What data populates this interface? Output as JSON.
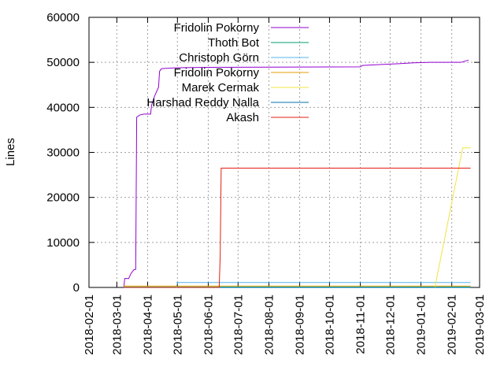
{
  "chart_data": {
    "type": "line",
    "title": "",
    "xlabel": "",
    "ylabel": "Lines",
    "ylim": [
      0,
      60000
    ],
    "xlim": [
      "2018-02-01",
      "2019-03-01"
    ],
    "yticks": [
      "0",
      "10000",
      "20000",
      "30000",
      "40000",
      "50000",
      "60000"
    ],
    "xticks": [
      "2018-02-01",
      "2018-03-01",
      "2018-04-01",
      "2018-05-01",
      "2018-06-01",
      "2018-07-01",
      "2018-08-01",
      "2018-09-01",
      "2018-10-01",
      "2018-11-01",
      "2018-12-01",
      "2019-01-01",
      "2019-02-01",
      "2019-03-01"
    ],
    "grid": true,
    "legend_position": "top-left",
    "series": [
      {
        "name": "Fridolin Pokorny",
        "color": "#9400d3",
        "points": [
          [
            "2018-03-08",
            0
          ],
          [
            "2018-03-09",
            2000
          ],
          [
            "2018-03-13",
            2000
          ],
          [
            "2018-03-15",
            3000
          ],
          [
            "2018-03-18",
            3900
          ],
          [
            "2018-03-20",
            4000
          ],
          [
            "2018-03-21",
            37800
          ],
          [
            "2018-03-24",
            38300
          ],
          [
            "2018-03-28",
            38500
          ],
          [
            "2018-04-04",
            38500
          ],
          [
            "2018-04-05",
            40500
          ],
          [
            "2018-04-08",
            42500
          ],
          [
            "2018-04-12",
            44500
          ],
          [
            "2018-04-13",
            48000
          ],
          [
            "2018-04-15",
            48600
          ],
          [
            "2018-05-01",
            48800
          ],
          [
            "2018-06-01",
            48900
          ],
          [
            "2018-11-01",
            49000
          ],
          [
            "2018-11-03",
            49300
          ],
          [
            "2018-11-20",
            49500
          ],
          [
            "2018-12-10",
            49700
          ],
          [
            "2018-12-25",
            49900
          ],
          [
            "2019-01-10",
            50000
          ],
          [
            "2019-02-10",
            50000
          ],
          [
            "2019-02-18",
            50500
          ]
        ]
      },
      {
        "name": "Thoth Bot",
        "color": "#009e73",
        "points": [
          [
            "2018-03-08",
            80
          ],
          [
            "2019-02-20",
            100
          ]
        ]
      },
      {
        "name": "Christoph Görn",
        "color": "#56b4e9",
        "points": [
          [
            "2018-03-08",
            0
          ],
          [
            "2018-04-30",
            0
          ],
          [
            "2018-05-01",
            1100
          ],
          [
            "2019-02-20",
            1100
          ]
        ]
      },
      {
        "name": "Fridolin Pokorny",
        "color": "#e69f00",
        "points": [
          [
            "2018-03-08",
            300
          ],
          [
            "2019-02-20",
            300
          ]
        ]
      },
      {
        "name": "Marek Cermak",
        "color": "#f0e442",
        "points": [
          [
            "2018-03-08",
            0
          ],
          [
            "2019-01-15",
            0
          ],
          [
            "2019-02-12",
            31000
          ],
          [
            "2019-02-20",
            31000
          ]
        ]
      },
      {
        "name": "Harshad Reddy Nalla",
        "color": "#0072b2",
        "points": [
          [
            "2018-03-08",
            0
          ],
          [
            "2019-02-20",
            0
          ]
        ]
      },
      {
        "name": "Akash",
        "color": "#e51e10",
        "points": [
          [
            "2018-03-08",
            0
          ],
          [
            "2018-06-12",
            0
          ],
          [
            "2018-06-13",
            6800
          ],
          [
            "2018-06-14",
            26500
          ],
          [
            "2019-02-20",
            26500
          ]
        ]
      }
    ]
  }
}
